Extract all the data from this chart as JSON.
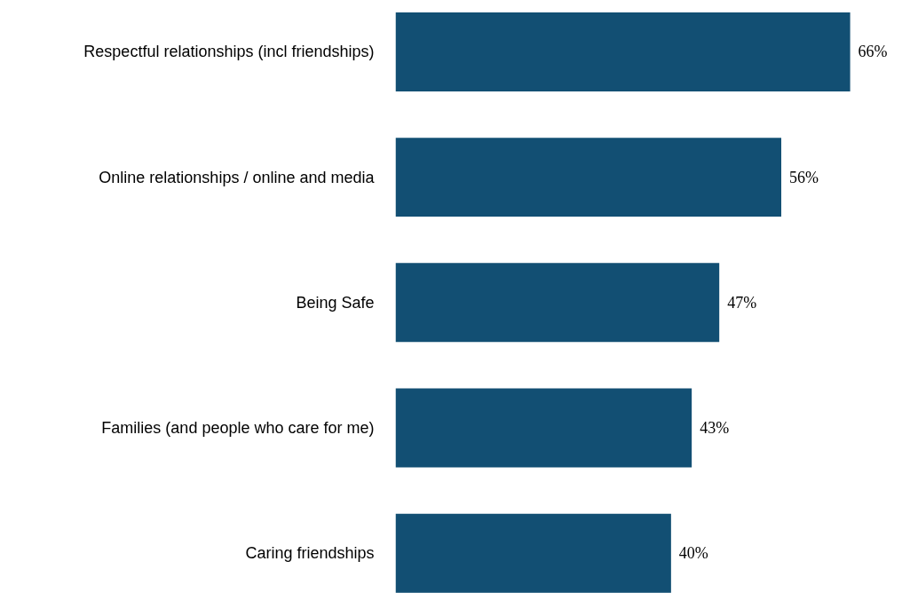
{
  "chart_data": {
    "type": "bar",
    "orientation": "horizontal",
    "categories": [
      "Respectful relationships (incl friendships)",
      "Online relationships / online and media",
      "Being Safe",
      "Families (and people who care for me)",
      "Caring friendships"
    ],
    "values": [
      66,
      56,
      47,
      43,
      40
    ],
    "color": "#124f73",
    "value_labels": [
      "66%",
      "56%",
      "47%",
      "43%",
      "40%"
    ]
  }
}
